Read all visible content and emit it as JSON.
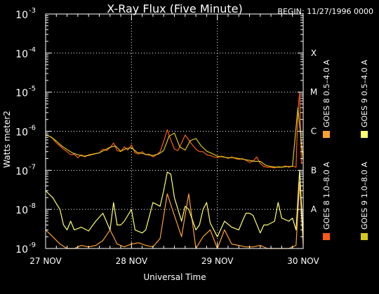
{
  "chart_data": {
    "type": "line",
    "title": "X-Ray Flux (Five Minute)",
    "begin_label": "BEGIN: 11/27/1996 0000",
    "xlabel": "Universal Time",
    "ylabel": "Watts meter2",
    "log_scale": true,
    "grid": true,
    "x_unit": "hours since 27 Nov 1996 00:00 UT",
    "x_ticks": [
      {
        "value": 0,
        "label": "27 NOV"
      },
      {
        "value": 24,
        "label": "28 NOV"
      },
      {
        "value": 48,
        "label": "29 NOV"
      },
      {
        "value": 72,
        "label": "30 NOV"
      }
    ],
    "ylim": [
      1e-09,
      0.001
    ],
    "y_ticks": [
      {
        "value": 1e-09,
        "base": "10",
        "exp": "-9"
      },
      {
        "value": 1e-08,
        "base": "10",
        "exp": "-8"
      },
      {
        "value": 1e-07,
        "base": "10",
        "exp": "-7"
      },
      {
        "value": 1e-06,
        "base": "10",
        "exp": "-6"
      },
      {
        "value": 1e-05,
        "base": "10",
        "exp": "-5"
      },
      {
        "value": 0.0001,
        "base": "10",
        "exp": "-4"
      },
      {
        "value": 0.001,
        "base": "10",
        "exp": "-3"
      }
    ],
    "flare_classes": [
      {
        "label": "A",
        "value": 1e-08
      },
      {
        "label": "B",
        "value": 1e-07
      },
      {
        "label": "C",
        "value": 1e-06
      },
      {
        "label": "M",
        "value": 1e-05
      },
      {
        "label": "X",
        "value": 0.0001
      }
    ],
    "legend": [
      {
        "label": "GOES 8  1.0–8.0 A",
        "color": "#ff5a14"
      },
      {
        "label": "GOES 8  0.5–4.0 A",
        "color": "#ffa030"
      },
      {
        "label": "GOES 9  1.0–8.0 A",
        "color": "#d4c81e"
      },
      {
        "label": "GOES 9  0.5–4.0 A",
        "color": "#ffff70"
      }
    ],
    "series": [
      {
        "name": "GOES 8  1.0–8.0 A",
        "color": "#ff5a14",
        "x": [
          0,
          1,
          2,
          3,
          4,
          5,
          6,
          7,
          8,
          9,
          10,
          11,
          12,
          13,
          14,
          15,
          16,
          17,
          18,
          19,
          20,
          21,
          22,
          23,
          24,
          25,
          26,
          27,
          28,
          29,
          30,
          31,
          32,
          33,
          34,
          35,
          36,
          37,
          38,
          39,
          40,
          41,
          42,
          43,
          44,
          45,
          46,
          47,
          48,
          49,
          50,
          51,
          52,
          53,
          54,
          55,
          56,
          57,
          58,
          59,
          60,
          61,
          62,
          63,
          64,
          65,
          66,
          67,
          68,
          69,
          70,
          70.5,
          71,
          71.5,
          72
        ],
        "y": [
          8e-07,
          7.5e-07,
          6.5e-07,
          5e-07,
          4.2e-07,
          3.5e-07,
          3e-07,
          2.5e-07,
          2.6e-07,
          2.1e-07,
          2.5e-07,
          2.2e-07,
          2.5e-07,
          2.6e-07,
          2.7e-07,
          2.8e-07,
          3.5e-07,
          3.2e-07,
          3.8e-07,
          5e-07,
          3.2e-07,
          3e-07,
          4e-07,
          3.3e-07,
          4.5e-07,
          2.8e-07,
          2.6e-07,
          3e-07,
          2.5e-07,
          2.6e-07,
          2.2e-07,
          2.5e-07,
          3e-07,
          5.5e-07,
          1.1e-06,
          6e-07,
          3.5e-07,
          3.2e-07,
          5e-07,
          8e-07,
          6e-07,
          4.5e-07,
          3.5e-07,
          3e-07,
          3e-07,
          2.5e-07,
          2.4e-07,
          2.2e-07,
          2.1e-07,
          2.3e-07,
          2.2e-07,
          2e-07,
          2.2e-07,
          2e-07,
          1.9e-07,
          2e-07,
          1.8e-07,
          1.6e-07,
          1.7e-07,
          2.2e-07,
          1.5e-07,
          1.25e-07,
          1.2e-07,
          1.2e-07,
          1.15e-07,
          1.25e-07,
          1.2e-07,
          1.3e-07,
          1.2e-07,
          1.3e-07,
          1.2e-07,
          3e-06,
          1e-05,
          1.5e-07,
          1.6e-07
        ]
      },
      {
        "name": "GOES 8  0.5–4.0 A",
        "color": "#ffa030",
        "x": [
          0,
          2,
          4,
          6,
          8,
          10,
          12,
          14,
          16,
          18,
          20,
          22,
          24,
          26,
          28,
          30,
          32,
          34,
          36,
          38,
          40,
          42,
          44,
          46,
          48,
          50,
          52,
          54,
          56,
          58,
          60,
          62,
          64,
          66,
          68,
          70,
          71,
          72
        ],
        "y": [
          3e-09,
          2e-09,
          1.3e-09,
          1e-09,
          1e-09,
          1.2e-09,
          1.1e-09,
          1.2e-09,
          1.6e-09,
          3e-09,
          1.3e-09,
          1.1e-09,
          1.3e-09,
          1.4e-09,
          1.2e-09,
          1.1e-09,
          1.8e-09,
          2.5e-08,
          7e-09,
          2e-09,
          2.5e-08,
          1e-09,
          2e-09,
          3e-09,
          1e-09,
          3e-09,
          1.3e-09,
          1.2e-09,
          1.1e-09,
          1.1e-09,
          1.2e-09,
          1e-09,
          1e-09,
          1e-09,
          1e-09,
          1.2e-09,
          5e-08,
          1.2e-09
        ]
      },
      {
        "name": "GOES 9  1.0–8.0 A",
        "color": "#d4c81e",
        "x": [
          0,
          1.5,
          3,
          4.5,
          6,
          7.5,
          9,
          10.5,
          12,
          13.5,
          15,
          16.5,
          18,
          19.5,
          21,
          22.5,
          24,
          25.5,
          27,
          28.5,
          30,
          31.5,
          33,
          34.5,
          36,
          37.5,
          39,
          40.5,
          42,
          43.5,
          45,
          46.5,
          48,
          49.5,
          51,
          52.5,
          54,
          55.5,
          57,
          58.5,
          60,
          61.5,
          63,
          64.5,
          66,
          67.5,
          69,
          70.5,
          72
        ],
        "y": [
          8.2e-07,
          7.2e-07,
          5.6e-07,
          4.2e-07,
          3.4e-07,
          2.8e-07,
          2.5e-07,
          2.3e-07,
          2.4e-07,
          2.6e-07,
          2.8e-07,
          3.3e-07,
          3.9e-07,
          4.2e-07,
          3.1e-07,
          3.6e-07,
          3.8e-07,
          2.9e-07,
          2.7e-07,
          2.5e-07,
          2.4e-07,
          2.6e-07,
          3.2e-07,
          7.5e-07,
          9e-07,
          4e-07,
          3.3e-07,
          5.8e-07,
          6.5e-07,
          4.2e-07,
          3.1e-07,
          2.7e-07,
          2.3e-07,
          2.2e-07,
          2.1e-07,
          2.1e-07,
          2e-07,
          1.9e-07,
          1.8e-07,
          1.7e-07,
          1.7e-07,
          1.35e-07,
          1.25e-07,
          1.2e-07,
          1.2e-07,
          1.25e-07,
          1.25e-07,
          4e-06,
          1.8e-07
        ]
      },
      {
        "name": "GOES 9  0.5–4.0 A",
        "color": "#ffff70",
        "x": [
          0,
          2,
          4,
          5,
          6,
          7,
          8,
          10,
          12,
          14,
          16,
          18,
          19,
          20,
          21,
          22,
          24,
          25,
          27,
          28,
          30,
          32,
          33,
          34,
          35,
          36,
          38,
          39,
          40,
          42,
          43,
          44,
          45,
          46,
          48,
          50,
          52,
          54,
          55,
          56,
          57,
          58,
          60,
          61,
          62,
          64,
          65,
          66,
          68,
          69,
          70,
          71,
          72
        ],
        "y": [
          3e-08,
          2e-08,
          1e-08,
          4e-09,
          3e-09,
          5e-09,
          3e-09,
          3.5e-09,
          2.8e-09,
          5e-09,
          8e-09,
          3e-09,
          1.5e-08,
          4e-09,
          4e-09,
          5e-09,
          1e-08,
          3e-09,
          2.5e-09,
          3e-09,
          1.5e-08,
          1.2e-08,
          3e-08,
          9e-08,
          8e-08,
          2e-08,
          5e-09,
          1.2e-08,
          1e-08,
          3e-09,
          4e-09,
          1e-08,
          1.5e-08,
          4.5e-09,
          2e-09,
          5e-09,
          3.5e-09,
          3e-09,
          5e-09,
          8e-09,
          8e-09,
          7e-09,
          2.5e-09,
          4e-09,
          4e-09,
          5e-09,
          1.5e-08,
          6e-09,
          5e-09,
          6e-09,
          3e-09,
          1e-07,
          2e-09
        ]
      }
    ]
  }
}
